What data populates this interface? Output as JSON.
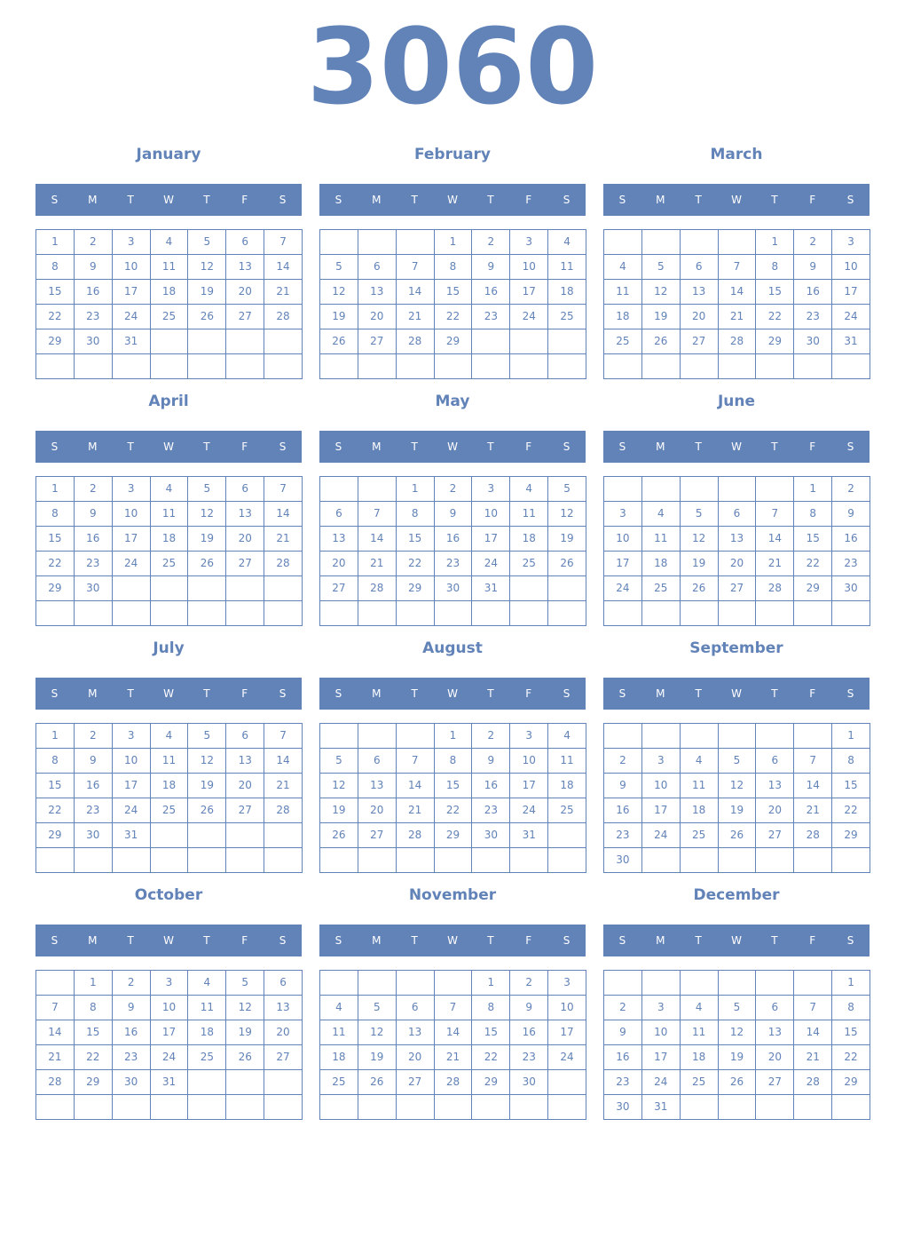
{
  "year": "3060",
  "accent_color": "#6283b8",
  "weekdays": [
    "S",
    "M",
    "T",
    "W",
    "T",
    "F",
    "S"
  ],
  "months": [
    {
      "name": "January",
      "first_weekday": 0,
      "days": 31
    },
    {
      "name": "February",
      "first_weekday": 3,
      "days": 29
    },
    {
      "name": "March",
      "first_weekday": 4,
      "days": 31
    },
    {
      "name": "April",
      "first_weekday": 0,
      "days": 30
    },
    {
      "name": "May",
      "first_weekday": 2,
      "days": 31
    },
    {
      "name": "June",
      "first_weekday": 5,
      "days": 30
    },
    {
      "name": "July",
      "first_weekday": 0,
      "days": 31
    },
    {
      "name": "August",
      "first_weekday": 3,
      "days": 31
    },
    {
      "name": "September",
      "first_weekday": 6,
      "days": 30
    },
    {
      "name": "October",
      "first_weekday": 1,
      "days": 31
    },
    {
      "name": "November",
      "first_weekday": 4,
      "days": 30
    },
    {
      "name": "December",
      "first_weekday": 6,
      "days": 31
    }
  ]
}
